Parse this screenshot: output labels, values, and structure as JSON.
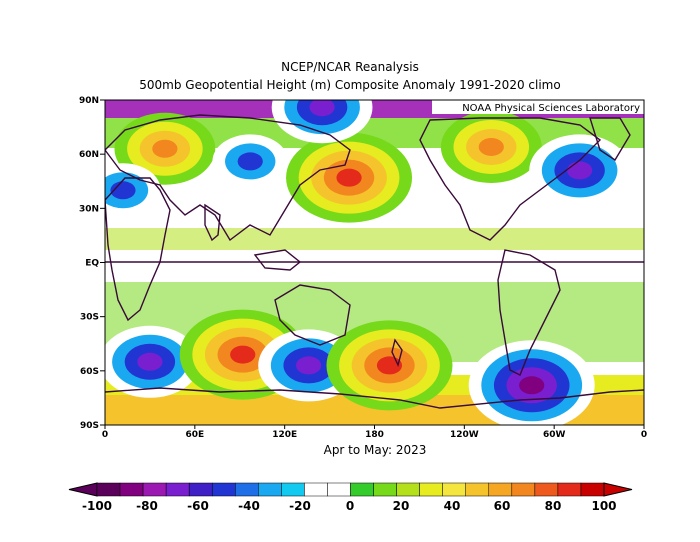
{
  "title_line1": "NCEP/NCAR Reanalysis",
  "title_line2": "500mb Geopotential Height (m) Composite Anomaly 1991-2020 climo",
  "credit": "NOAA Physical Sciences Laboratory",
  "subtitle": "Apr to May: 2023",
  "lat_labels": [
    "90N",
    "60N",
    "30N",
    "EQ",
    "30S",
    "60S",
    "90S"
  ],
  "lon_labels": [
    "0",
    "60E",
    "120E",
    "180",
    "120W",
    "60W",
    "0"
  ],
  "colorbar": {
    "labels": [
      "-100",
      "-80",
      "-60",
      "-40",
      "-20",
      "0",
      "20",
      "40",
      "60",
      "80",
      "100"
    ],
    "colors": [
      "#5a005a",
      "#80007f",
      "#9b19b2",
      "#7a1fd0",
      "#3f1fc6",
      "#2135d2",
      "#1f6fe6",
      "#1aa9f0",
      "#12c9f0",
      "#ffffff",
      "#ffffff",
      "#34cc2a",
      "#76d91a",
      "#b3e01a",
      "#e6ec1f",
      "#f5e63f",
      "#f5c42c",
      "#f5a622",
      "#f28720",
      "#ee5a1d",
      "#e42a1a",
      "#c80000"
    ]
  },
  "map": {
    "anomalies": [
      {
        "id": "europe-high",
        "lon": 40,
        "lat": 63,
        "value": 60
      },
      {
        "id": "siberia-low",
        "lon": 97,
        "lat": 56,
        "value": -40
      },
      {
        "id": "kamchatka-high",
        "lon": 163,
        "lat": 47,
        "value": 80
      },
      {
        "id": "mediterranean-low",
        "lon": 12,
        "lat": 40,
        "value": -40
      },
      {
        "id": "canada-high",
        "lon": -102,
        "lat": 64,
        "value": 60
      },
      {
        "id": "north-atlantic-low",
        "lon": -43,
        "lat": 51,
        "value": -60
      },
      {
        "id": "arctic-low",
        "lon": 145,
        "lat": 86,
        "value": -60
      },
      {
        "id": "south-indian-low",
        "lon": 30,
        "lat": -55,
        "value": -60
      },
      {
        "id": "south-indian-high",
        "lon": 92,
        "lat": -51,
        "value": 80
      },
      {
        "id": "australia-low",
        "lon": 136,
        "lat": -57,
        "value": -60
      },
      {
        "id": "nz-high",
        "lon": 190,
        "lat": -57,
        "value": 80
      },
      {
        "id": "southern-pacific-low",
        "lon": -75,
        "lat": -68,
        "value": -80
      }
    ]
  }
}
